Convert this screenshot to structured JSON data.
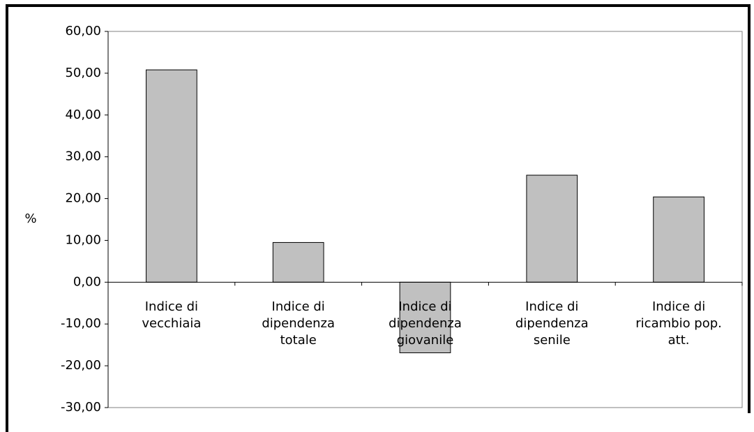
{
  "chart_data": {
    "type": "bar",
    "categories": [
      "Indice di vecchiaia",
      "Indice di dipendenza totale",
      "Indice di dipendenza giovanile",
      "Indice di dipendenza senile",
      "Indice di ricambio pop. att."
    ],
    "values": [
      50.8,
      9.5,
      -16.9,
      25.6,
      20.4
    ],
    "color": "#c0c0c0",
    "y_label": "%",
    "ylim": [
      -30,
      60
    ],
    "yticks": [
      {
        "value": -30,
        "label": "-30,00"
      },
      {
        "value": -20,
        "label": "-20,00"
      },
      {
        "value": -10,
        "label": "-10,00"
      },
      {
        "value": 0,
        "label": "0,00"
      },
      {
        "value": 10,
        "label": "10,00"
      },
      {
        "value": 20,
        "label": "20,00"
      },
      {
        "value": 30,
        "label": "30,00"
      },
      {
        "value": 40,
        "label": "40,00"
      },
      {
        "value": 50,
        "label": "50,00"
      },
      {
        "value": 60,
        "label": "60,00"
      }
    ],
    "grid": false
  }
}
